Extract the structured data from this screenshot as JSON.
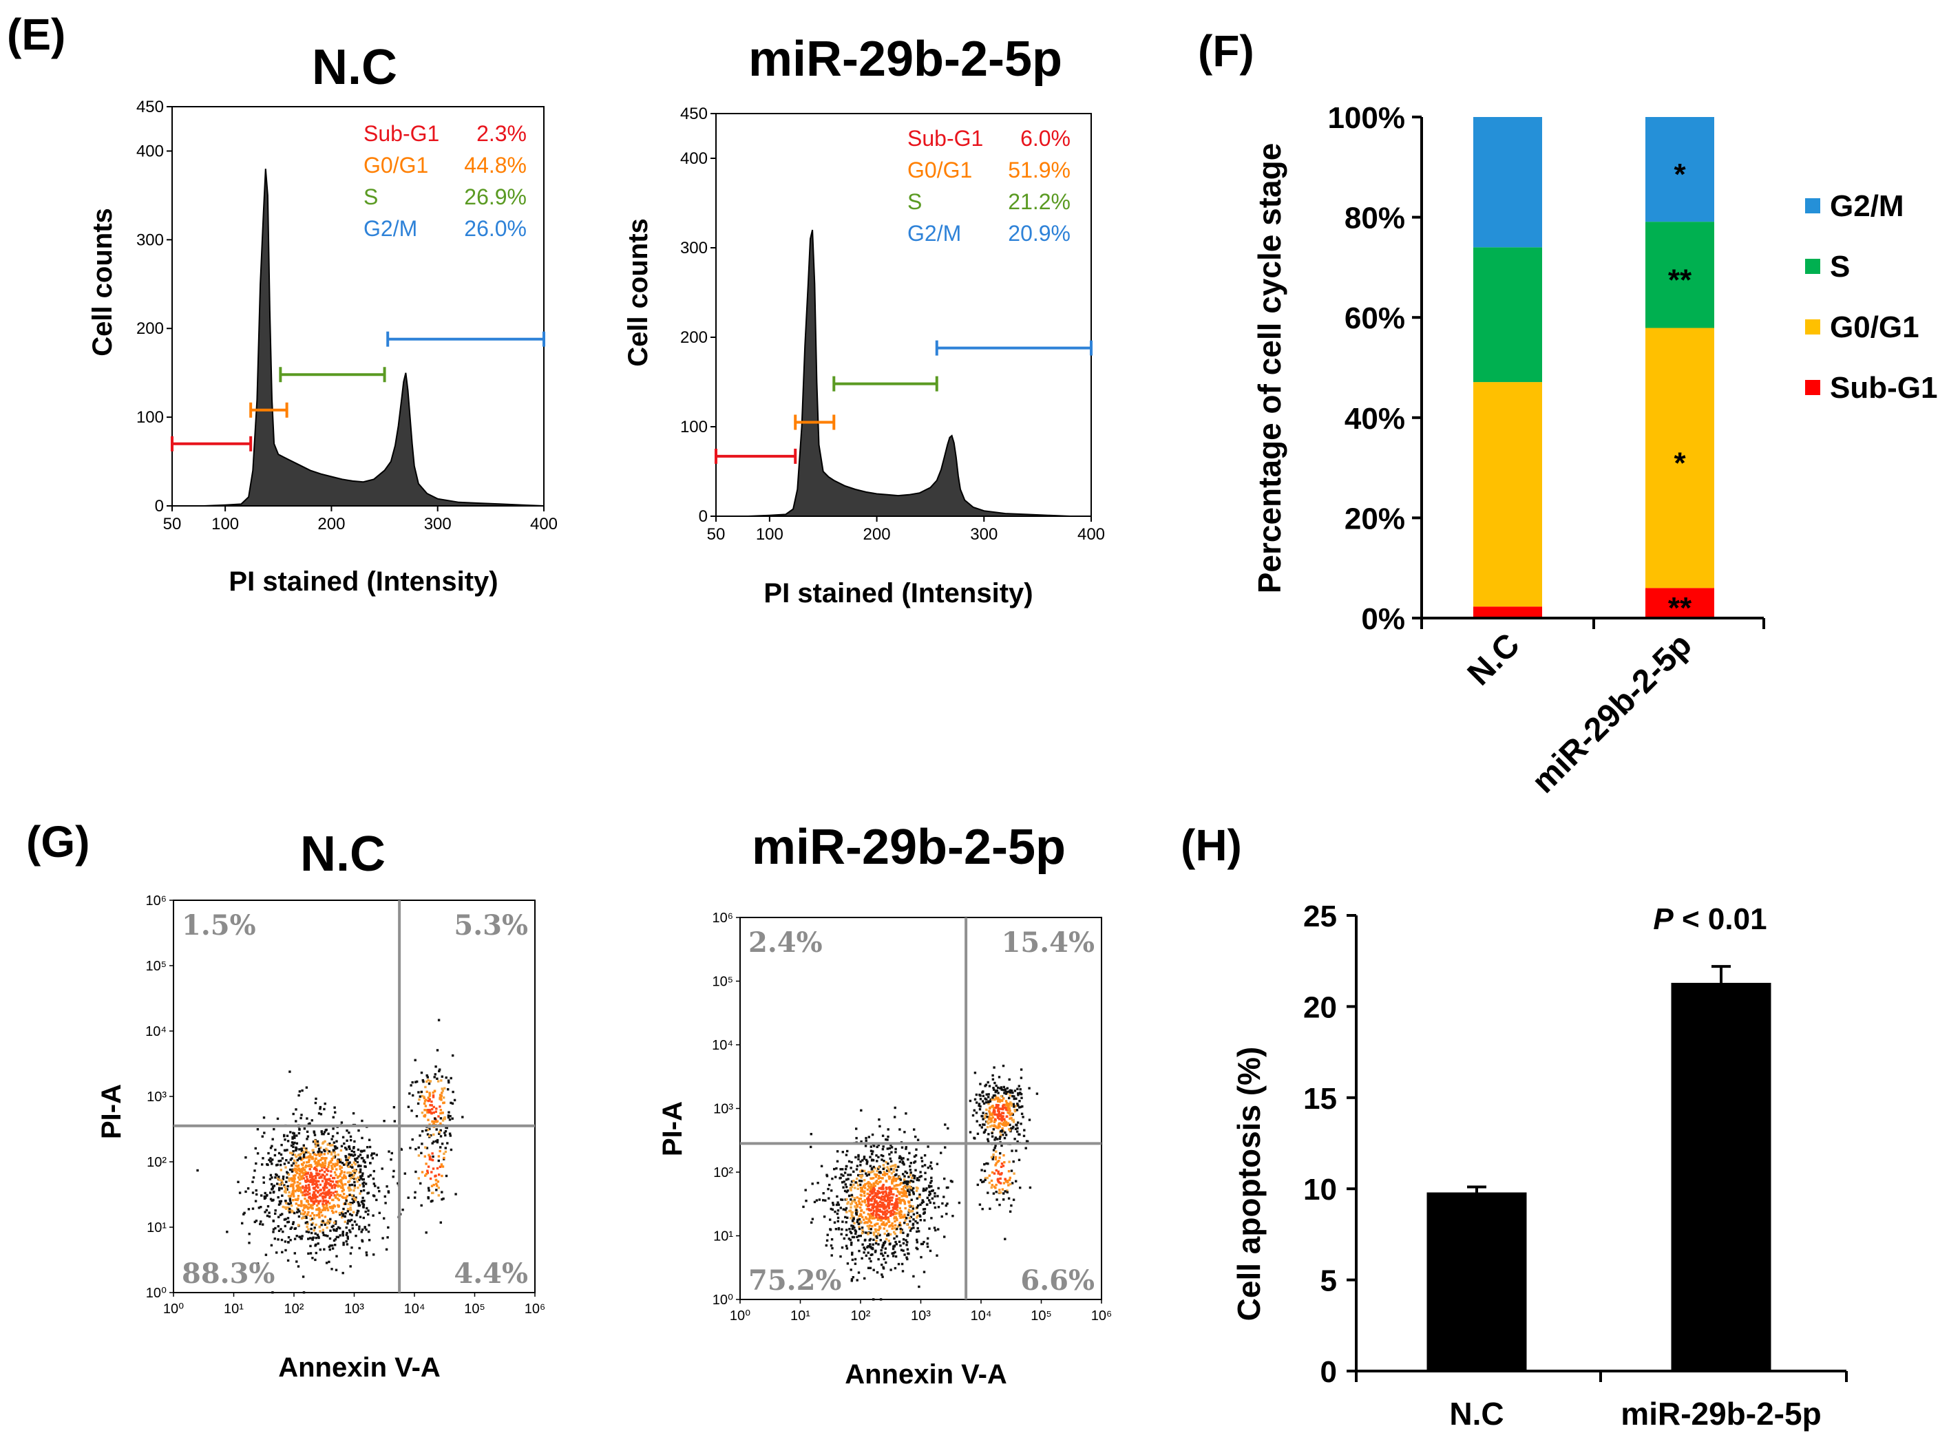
{
  "colors": {
    "subg1": "#e8141c",
    "g0g1": "#ff7f00",
    "s": "#5a9a22",
    "g2m": "#2e82d8",
    "stack_g2m": "#2590d8",
    "stack_s": "#00b050",
    "stack_g0g1": "#ffc000",
    "stack_subg1": "#ff0000",
    "flow_grid": "#909090",
    "flow_label": "#8c8c8c"
  },
  "panels": {
    "E": {
      "label": "(E)"
    },
    "F": {
      "label": "(F)"
    },
    "G": {
      "label": "(G)"
    },
    "H": {
      "label": "(H)"
    }
  },
  "chart_data": [
    {
      "id": "hist_nc",
      "type": "area",
      "title": "N.C",
      "xlabel": "PI stained (Intensity)",
      "ylabel": "Cell counts",
      "xlim": [
        50,
        400
      ],
      "ylim": [
        0,
        450
      ],
      "xticks": [
        "50",
        "100",
        "200",
        "300",
        "400"
      ],
      "xtick_values": [
        50,
        100,
        200,
        300,
        400
      ],
      "yticks": [
        "0",
        "100",
        "200",
        "300",
        "400",
        "450"
      ],
      "ytick_values": [
        0,
        100,
        200,
        300,
        400,
        450
      ],
      "profile_x": [
        50,
        80,
        100,
        115,
        122,
        126,
        130,
        133,
        136,
        138,
        140,
        142,
        144,
        146,
        150,
        155,
        160,
        170,
        180,
        190,
        200,
        210,
        220,
        230,
        240,
        250,
        256,
        260,
        263,
        266,
        268,
        270,
        272,
        274,
        276,
        278,
        282,
        290,
        300,
        320,
        340,
        360,
        380,
        400
      ],
      "profile_y": [
        0,
        0,
        1,
        2,
        10,
        40,
        120,
        250,
        330,
        380,
        350,
        220,
        120,
        70,
        58,
        55,
        52,
        46,
        40,
        36,
        33,
        30,
        28,
        27,
        30,
        40,
        50,
        68,
        90,
        120,
        140,
        150,
        130,
        100,
        70,
        45,
        25,
        14,
        8,
        4,
        3,
        2,
        1,
        0
      ],
      "gates": [
        {
          "name": "Sub-G1",
          "from": 50,
          "to": 124,
          "level": 70
        },
        {
          "name": "G0/G1",
          "from": 124,
          "to": 158,
          "level": 108
        },
        {
          "name": "S",
          "from": 152,
          "to": 250,
          "level": 148
        },
        {
          "name": "G2/M",
          "from": 253,
          "to": 400,
          "level": 188
        }
      ],
      "stats": [
        {
          "name": "Sub-G1",
          "value": "2.3%"
        },
        {
          "name": "G0/G1",
          "value": "44.8%"
        },
        {
          "name": "S",
          "value": "26.9%"
        },
        {
          "name": "G2/M",
          "value": "26.0%"
        }
      ]
    },
    {
      "id": "hist_mir",
      "type": "area",
      "title": "miR-29b-2-5p",
      "xlabel": "PI stained (Intensity)",
      "ylabel": "Cell counts",
      "xlim": [
        50,
        400
      ],
      "ylim": [
        0,
        450
      ],
      "xticks": [
        "50",
        "100",
        "200",
        "300",
        "400"
      ],
      "xtick_values": [
        50,
        100,
        200,
        300,
        400
      ],
      "yticks": [
        "0",
        "100",
        "200",
        "300",
        "400",
        "450"
      ],
      "ytick_values": [
        0,
        100,
        200,
        300,
        400,
        450
      ],
      "profile_x": [
        50,
        80,
        100,
        115,
        122,
        126,
        130,
        133,
        136,
        138,
        140,
        142,
        144,
        146,
        150,
        155,
        160,
        170,
        180,
        190,
        200,
        210,
        220,
        230,
        240,
        250,
        256,
        260,
        263,
        266,
        268,
        270,
        272,
        274,
        276,
        278,
        282,
        290,
        300,
        320,
        340,
        360,
        380,
        400
      ],
      "profile_y": [
        0,
        0,
        1,
        2,
        8,
        30,
        100,
        190,
        260,
        310,
        320,
        260,
        150,
        80,
        50,
        44,
        40,
        34,
        30,
        27,
        25,
        24,
        23,
        24,
        26,
        32,
        40,
        52,
        66,
        80,
        88,
        90,
        82,
        66,
        45,
        30,
        18,
        10,
        6,
        3,
        2,
        1,
        0,
        0
      ],
      "gates": [
        {
          "name": "Sub-G1",
          "from": 50,
          "to": 124,
          "level": 67
        },
        {
          "name": "G0/G1",
          "from": 124,
          "to": 160,
          "level": 105
        },
        {
          "name": "S",
          "from": 160,
          "to": 256,
          "level": 148
        },
        {
          "name": "G2/M",
          "from": 256,
          "to": 400,
          "level": 188
        }
      ],
      "stats": [
        {
          "name": "Sub-G1",
          "value": "6.0%"
        },
        {
          "name": "G0/G1",
          "value": "51.9%"
        },
        {
          "name": "S",
          "value": "21.2%"
        },
        {
          "name": "G2/M",
          "value": "20.9%"
        }
      ]
    },
    {
      "id": "stack",
      "type": "bar",
      "stacked": true,
      "title": "",
      "xlabel": "",
      "ylabel": "Percentage of cell cycle stage",
      "ylim": [
        0,
        100
      ],
      "yticks": [
        "0%",
        "20%",
        "40%",
        "60%",
        "80%",
        "100%"
      ],
      "ytick_values": [
        0,
        20,
        40,
        60,
        80,
        100
      ],
      "categories": [
        "N.C",
        "miR-29b-2-5p"
      ],
      "series": [
        {
          "name": "Sub-G1",
          "values": [
            2.3,
            6.0
          ],
          "marks": [
            "",
            "**"
          ]
        },
        {
          "name": "G0/G1",
          "values": [
            44.8,
            51.9
          ],
          "marks": [
            "",
            "*"
          ]
        },
        {
          "name": "S",
          "values": [
            26.9,
            21.2
          ],
          "marks": [
            "",
            "**"
          ]
        },
        {
          "name": "G2/M",
          "values": [
            26.0,
            20.9
          ],
          "marks": [
            "",
            "*"
          ]
        }
      ],
      "legend": [
        "G2/M",
        "S",
        "G0/G1",
        "Sub-G1"
      ]
    },
    {
      "id": "flow_nc",
      "type": "scatter",
      "title": "N.C",
      "xlabel": "Annexin V-A",
      "ylabel": "PI-A",
      "axis_scale": "log10",
      "xlim": [
        0,
        6
      ],
      "ylim": [
        0,
        6
      ],
      "xticks": [
        "10⁰",
        "10¹",
        "10²",
        "10³",
        "10⁴",
        "10⁵",
        "10⁶"
      ],
      "yticks": [
        "10⁰",
        "10¹",
        "10²",
        "10³",
        "10⁴",
        "10⁵",
        "10⁶"
      ],
      "gate": {
        "x": 3.75,
        "y": 2.55
      },
      "quadrants": {
        "upper_left": "1.5%",
        "upper_right": "5.3%",
        "lower_left": "88.3%",
        "lower_right": "4.4%"
      },
      "clusters": [
        {
          "cx": 2.4,
          "cy": 1.65,
          "sx": 0.5,
          "sy": 0.5,
          "n": 1300
        },
        {
          "cx": 4.3,
          "cy": 2.85,
          "sx": 0.18,
          "sy": 0.35,
          "n": 170
        },
        {
          "cx": 4.3,
          "cy": 1.95,
          "sx": 0.2,
          "sy": 0.35,
          "n": 80
        }
      ]
    },
    {
      "id": "flow_mir",
      "type": "scatter",
      "title": "miR-29b-2-5p",
      "xlabel": "Annexin V-A",
      "ylabel": "PI-A",
      "axis_scale": "log10",
      "xlim": [
        0,
        6
      ],
      "ylim": [
        0,
        6
      ],
      "xticks": [
        "10⁰",
        "10¹",
        "10²",
        "10³",
        "10⁴",
        "10⁵",
        "10⁶"
      ],
      "yticks": [
        "10⁰",
        "10¹",
        "10²",
        "10³",
        "10⁴",
        "10⁵",
        "10⁶"
      ],
      "gate": {
        "x": 3.75,
        "y": 2.45
      },
      "quadrants": {
        "upper_left": "2.4%",
        "upper_right": "15.4%",
        "lower_left": "75.2%",
        "lower_right": "6.6%"
      },
      "clusters": [
        {
          "cx": 2.35,
          "cy": 1.55,
          "sx": 0.45,
          "sy": 0.45,
          "n": 1150
        },
        {
          "cx": 4.3,
          "cy": 2.95,
          "sx": 0.2,
          "sy": 0.25,
          "n": 330
        },
        {
          "cx": 4.3,
          "cy": 2.0,
          "sx": 0.18,
          "sy": 0.3,
          "n": 110
        }
      ]
    },
    {
      "id": "apop",
      "type": "bar",
      "title": "",
      "xlabel": "",
      "ylabel": "Cell apoptosis (%)",
      "ylim": [
        0,
        25
      ],
      "yticks": [
        "0",
        "5",
        "10",
        "15",
        "20",
        "25"
      ],
      "ytick_values": [
        0,
        5,
        10,
        15,
        20,
        25
      ],
      "categories": [
        "N.C",
        "miR-29b-2-5p"
      ],
      "values": [
        9.8,
        21.3
      ],
      "errors": [
        0.3,
        0.9
      ],
      "annotation": {
        "italic": "P",
        "text": " < 0.01"
      }
    }
  ]
}
